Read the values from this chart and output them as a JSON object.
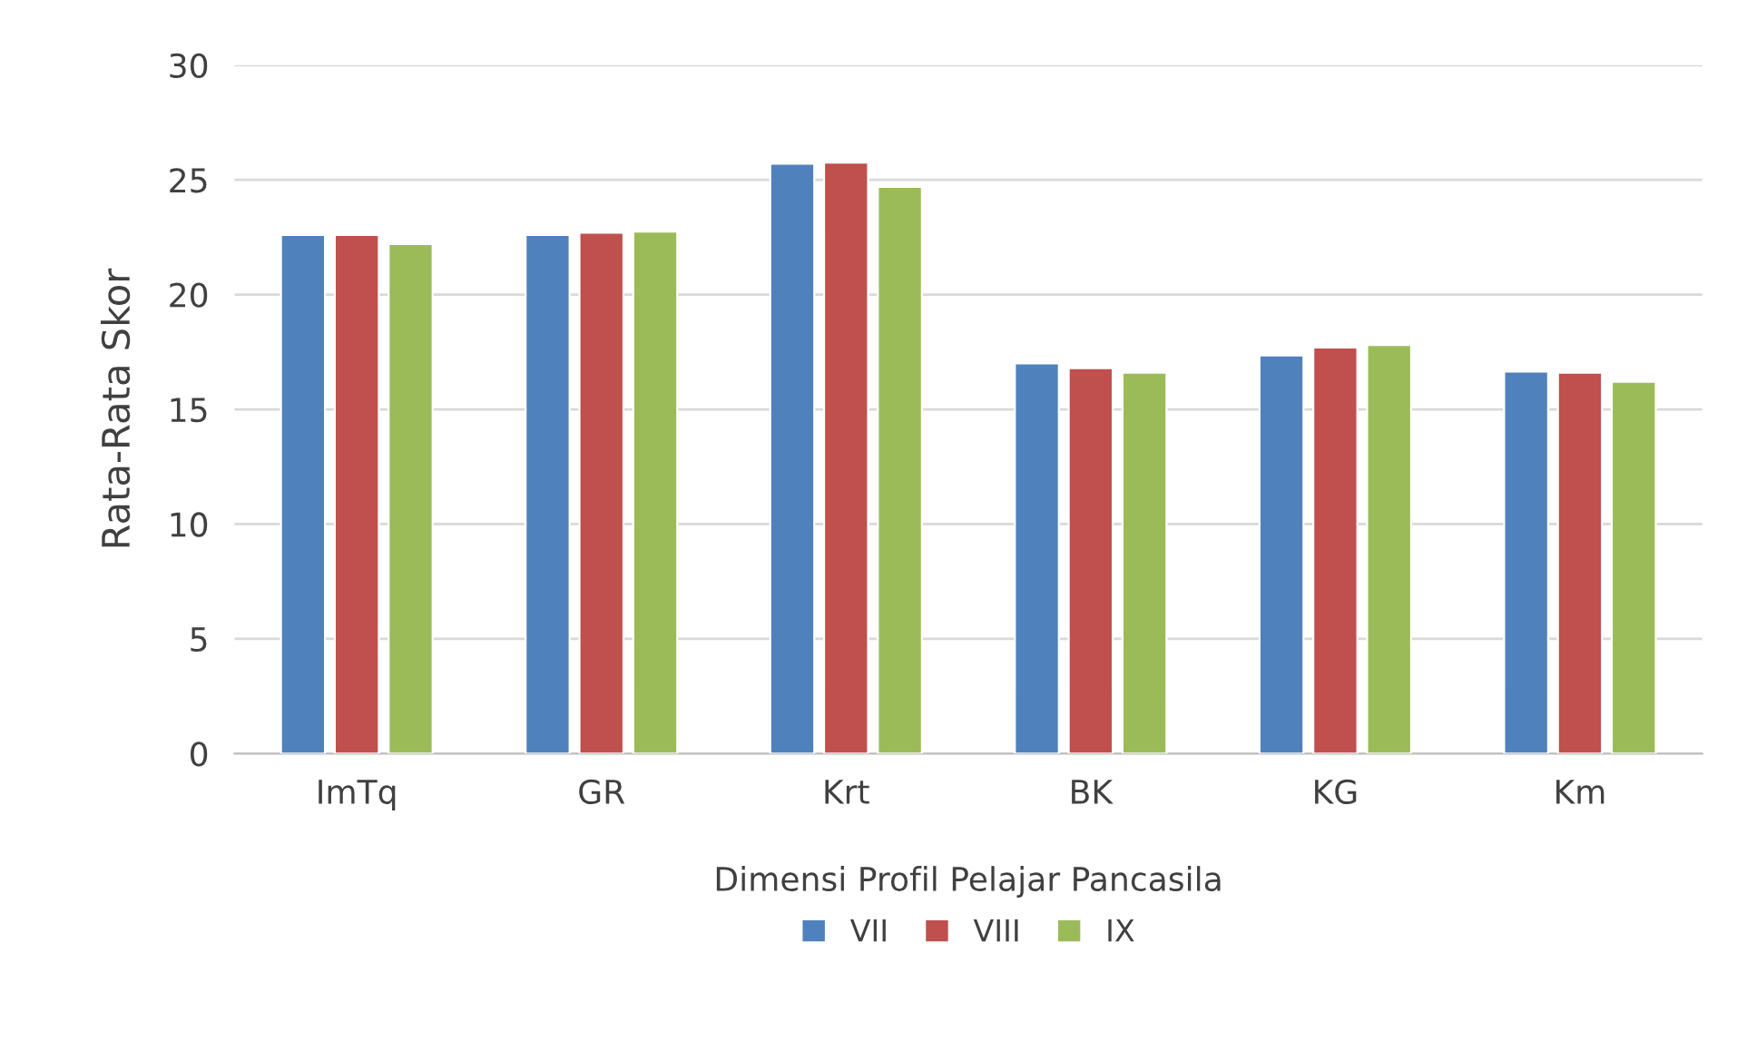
{
  "chart_data": {
    "type": "bar",
    "xlabel": "Dimensi Profil Pelajar Pancasila",
    "ylabel": "Rata-Rata Skor",
    "categories": [
      "ImTq",
      "GR",
      "Krt",
      "BK",
      "KG",
      "Km"
    ],
    "series": [
      {
        "name": "VII",
        "color": "#4f81bd",
        "values": [
          22.6,
          22.6,
          25.7,
          17.0,
          17.35,
          16.65
        ]
      },
      {
        "name": "VIII",
        "color": "#c0504d",
        "values": [
          22.6,
          22.7,
          25.75,
          16.8,
          17.7,
          16.6
        ]
      },
      {
        "name": "IX",
        "color": "#9bbb59",
        "values": [
          22.2,
          22.75,
          24.7,
          16.6,
          17.8,
          16.2
        ]
      }
    ],
    "ylim": [
      0,
      30
    ],
    "yticks": [
      0,
      5,
      10,
      15,
      20,
      25,
      30
    ],
    "grid": "y",
    "legend": "bottom"
  }
}
